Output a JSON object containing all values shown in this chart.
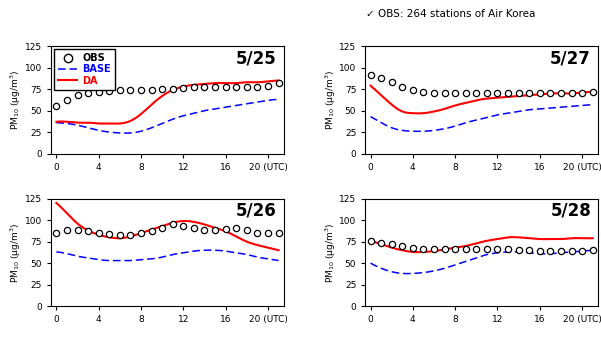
{
  "title_annotation": "✓ OBS: 264 stations of Air Korea",
  "panels": [
    {
      "label": "5/25",
      "ylim": [
        0,
        125
      ],
      "yticks": [
        0,
        25,
        50,
        75,
        100,
        125
      ],
      "obs_x": [
        0,
        1,
        2,
        3,
        4,
        5,
        6,
        7,
        8,
        9,
        10,
        11,
        12,
        13,
        14,
        15,
        16,
        17,
        18,
        19,
        20,
        21
      ],
      "obs": [
        55,
        62,
        68,
        71,
        72,
        73,
        74,
        74,
        74,
        74,
        75,
        75,
        76,
        77,
        77,
        77,
        77,
        78,
        78,
        78,
        79,
        82
      ],
      "base": [
        36,
        35,
        33,
        30,
        27,
        25,
        24,
        24,
        26,
        30,
        35,
        40,
        44,
        47,
        50,
        52,
        54,
        56,
        58,
        60,
        62,
        63
      ],
      "da": [
        37,
        37,
        36,
        36,
        35,
        35,
        35,
        38,
        46,
        57,
        67,
        74,
        78,
        80,
        81,
        82,
        82,
        82,
        83,
        83,
        84,
        85
      ]
    },
    {
      "label": "5/27",
      "ylim": [
        0,
        125
      ],
      "yticks": [
        0,
        25,
        50,
        75,
        100,
        125
      ],
      "obs_x": [
        0,
        1,
        2,
        3,
        4,
        5,
        6,
        7,
        8,
        9,
        10,
        11,
        12,
        13,
        14,
        15,
        16,
        17,
        18,
        19,
        20,
        21
      ],
      "obs": [
        91,
        88,
        83,
        78,
        74,
        72,
        71,
        70,
        70,
        70,
        70,
        70,
        70,
        70,
        70,
        70,
        70,
        70,
        70,
        70,
        70,
        72
      ],
      "base": [
        43,
        36,
        30,
        27,
        26,
        26,
        27,
        29,
        32,
        36,
        39,
        42,
        45,
        47,
        49,
        51,
        52,
        53,
        54,
        55,
        56,
        57
      ],
      "da": [
        79,
        68,
        57,
        49,
        47,
        47,
        49,
        52,
        56,
        59,
        62,
        64,
        65,
        66,
        67,
        68,
        69,
        70,
        70,
        70,
        71,
        72
      ]
    },
    {
      "label": "5/26",
      "ylim": [
        0,
        125
      ],
      "yticks": [
        0,
        25,
        50,
        75,
        100,
        125
      ],
      "obs_x": [
        0,
        1,
        2,
        3,
        4,
        5,
        6,
        7,
        8,
        9,
        10,
        11,
        12,
        13,
        14,
        15,
        16,
        17,
        18,
        19,
        20,
        21
      ],
      "obs": [
        85,
        88,
        89,
        87,
        85,
        84,
        83,
        83,
        85,
        87,
        91,
        95,
        93,
        91,
        89,
        88,
        90,
        91,
        88,
        85,
        85,
        85
      ],
      "base": [
        63,
        61,
        58,
        56,
        54,
        53,
        53,
        53,
        54,
        55,
        57,
        60,
        62,
        64,
        65,
        65,
        64,
        62,
        60,
        57,
        55,
        53
      ],
      "da": [
        120,
        108,
        96,
        88,
        83,
        80,
        79,
        81,
        85,
        89,
        93,
        97,
        99,
        98,
        95,
        91,
        87,
        81,
        75,
        71,
        68,
        65
      ]
    },
    {
      "label": "5/28",
      "ylim": [
        0,
        125
      ],
      "yticks": [
        0,
        25,
        50,
        75,
        100,
        125
      ],
      "obs_x": [
        0,
        1,
        2,
        3,
        4,
        5,
        6,
        7,
        8,
        9,
        10,
        11,
        12,
        13,
        14,
        15,
        16,
        17,
        18,
        19,
        20,
        21
      ],
      "obs": [
        76,
        74,
        72,
        70,
        68,
        67,
        67,
        67,
        67,
        67,
        67,
        67,
        66,
        66,
        65,
        65,
        64,
        64,
        64,
        64,
        64,
        65
      ],
      "base": [
        50,
        44,
        40,
        38,
        38,
        39,
        41,
        44,
        48,
        52,
        56,
        60,
        62,
        63,
        63,
        62,
        61,
        61,
        62,
        63,
        64,
        65
      ],
      "da": [
        76,
        72,
        68,
        65,
        63,
        63,
        64,
        66,
        68,
        70,
        73,
        76,
        78,
        80,
        80,
        79,
        78,
        78,
        78,
        79,
        79,
        79
      ]
    }
  ],
  "xticks": [
    0,
    4,
    8,
    12,
    16,
    20
  ],
  "ylabel": "PM$_{10}$ (μg/m$^3$)",
  "obs_color": "black",
  "base_color": "blue",
  "da_color": "red"
}
